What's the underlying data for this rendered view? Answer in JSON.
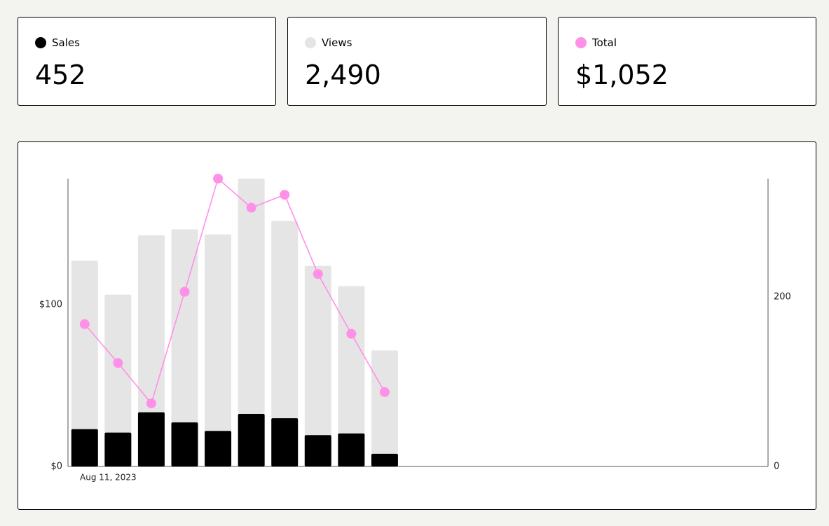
{
  "cards": [
    {
      "value": "452"
    },
    {
      "value": "2,490"
    },
    {
      "value": "$1,052"
    }
  ],
  "chart_data": {
    "type": "combo",
    "categories": [
      "Aug 11, 2023",
      null,
      null,
      null,
      null,
      null,
      null,
      null,
      null,
      null,
      null,
      null,
      null,
      null,
      null,
      null,
      null,
      null,
      null,
      null,
      null
    ],
    "series": [
      {
        "name": "Sales",
        "type": "bar",
        "axis": "y2",
        "color": "#000000",
        "values": [
          44,
          40,
          64,
          52,
          42,
          62,
          57,
          37,
          39,
          15,
          null,
          null,
          null,
          null,
          null,
          null,
          null,
          null,
          null,
          null,
          null
        ]
      },
      {
        "name": "Views",
        "type": "bar",
        "axis": "y2",
        "color": "#e5e5e5",
        "values": [
          243,
          203,
          273,
          280,
          274,
          340,
          290,
          237,
          213,
          137,
          null,
          null,
          null,
          null,
          null,
          null,
          null,
          null,
          null,
          null,
          null
        ]
      },
      {
        "name": "Total",
        "type": "line",
        "axis": "y",
        "color": "#ff90e8",
        "values": [
          88,
          64,
          39,
          108,
          178,
          160,
          168,
          119,
          82,
          46,
          null,
          null,
          null,
          null,
          null,
          null,
          null,
          null,
          null,
          null,
          null
        ]
      }
    ],
    "ylim": [
      0,
      178
    ],
    "yticks": [
      {
        "value": 0,
        "label": "$0"
      },
      {
        "value": 100,
        "label": "$100"
      }
    ],
    "y2lim": [
      0,
      340
    ],
    "y2ticks": [
      0,
      200
    ]
  }
}
